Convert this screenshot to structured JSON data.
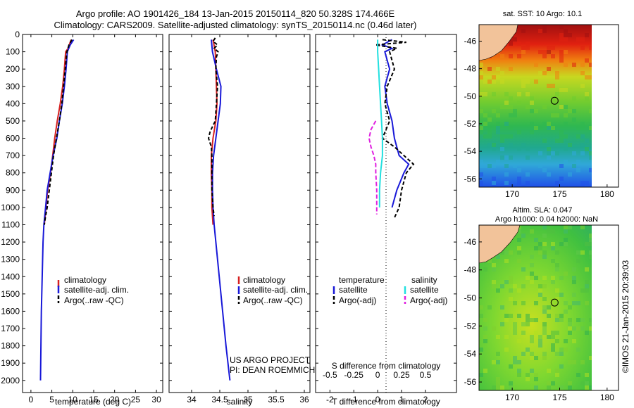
{
  "header": {
    "line1": "Argo profile: AO 1901426_184 13-Jan-2015 20150114_820 50.328S 174.466E",
    "line2": "Climatology: CARS2009. Satellite-adjusted climatology: synTS_20150114.nc (0.46d later)"
  },
  "colors": {
    "climatology": "#d62020",
    "satellite": "#1818d8",
    "argo": "#000000",
    "sat_salinity": "#22e0e0",
    "argo_salinity": "#e020e0",
    "land": "#f2c39a"
  },
  "chart_data": [
    {
      "type": "line",
      "name": "temperature-profile",
      "xlabel": "temperature (deg C)",
      "xlim": [
        -2,
        31.5
      ],
      "ylim": [
        2070,
        0
      ],
      "xticks": [
        0,
        5,
        10,
        15,
        20,
        25,
        30
      ],
      "yticks": [
        0,
        100,
        200,
        300,
        400,
        500,
        600,
        700,
        800,
        900,
        1000,
        1100,
        1200,
        1300,
        1400,
        1500,
        1600,
        1700,
        1800,
        1900,
        2000
      ],
      "legend": [
        "climatology",
        "satellite-adj. clim.",
        "Argo(..raw -QC)"
      ],
      "series": [
        {
          "name": "climatology",
          "color": "#d62020",
          "dash": "",
          "depth": [
            30,
            80,
            100,
            200,
            300,
            400,
            500,
            600,
            700,
            800,
            900,
            1000,
            1100
          ],
          "values": [
            9.6,
            8.9,
            8.3,
            8.0,
            7.6,
            7.0,
            6.3,
            5.7,
            5.2,
            4.7,
            4.0,
            3.6,
            3.2
          ]
        },
        {
          "name": "satellite-adj. clim.",
          "color": "#1818d8",
          "dash": "",
          "depth": [
            30,
            60,
            100,
            200,
            300,
            400,
            500,
            600,
            700,
            800,
            900,
            1000,
            1100,
            1200,
            1400,
            1600,
            1800,
            2000
          ],
          "values": [
            10.2,
            9.4,
            8.7,
            8.4,
            8.0,
            7.5,
            6.8,
            6.2,
            5.3,
            4.6,
            3.9,
            3.5,
            3.1,
            2.9,
            2.7,
            2.5,
            2.4,
            2.3
          ]
        },
        {
          "name": "Argo(..raw -QC)",
          "color": "#000000",
          "dash": "5,3",
          "depth": [
            30,
            60,
            100,
            200,
            300,
            400,
            500,
            600,
            700,
            800,
            900,
            1000,
            1050,
            1100
          ],
          "values": [
            9.8,
            9.1,
            8.6,
            8.2,
            7.8,
            7.4,
            6.8,
            6.1,
            5.4,
            4.9,
            4.4,
            3.9,
            3.5,
            3.2
          ]
        }
      ]
    },
    {
      "type": "line",
      "name": "salinity-profile",
      "xlabel": "salinity",
      "xlim": [
        33.6,
        36.1
      ],
      "ylim": [
        2070,
        0
      ],
      "xticks": [
        34,
        34.5,
        35,
        35.5,
        36
      ],
      "legend": [
        "climatology",
        "satellite-adj. clim.",
        "Argo(..raw -QC)"
      ],
      "annotation": [
        "US ARGO PROJECT",
        "PI: DEAN ROEMMICH"
      ],
      "series": [
        {
          "name": "climatology",
          "color": "#d62020",
          "dash": "",
          "depth": [
            30,
            100,
            200,
            300,
            400,
            500,
            600,
            700,
            800,
            900,
            1000,
            1100
          ],
          "values": [
            34.38,
            34.42,
            34.43,
            34.44,
            34.45,
            34.43,
            34.38,
            34.35,
            34.35,
            34.36,
            34.36,
            34.38
          ]
        },
        {
          "name": "satellite-adj. clim.",
          "color": "#1818d8",
          "dash": "",
          "depth": [
            30,
            100,
            200,
            300,
            400,
            500,
            600,
            700,
            800,
            900,
            1000,
            1100,
            1200,
            1400,
            1600,
            1800,
            2000
          ],
          "values": [
            34.35,
            34.37,
            34.44,
            34.52,
            34.51,
            34.47,
            34.43,
            34.39,
            34.37,
            34.37,
            34.38,
            34.4,
            34.43,
            34.49,
            34.55,
            34.61,
            34.68
          ]
        },
        {
          "name": "Argo(..raw -QC)",
          "color": "#000000",
          "dash": "5,3",
          "depth": [
            20,
            40,
            60,
            80,
            100,
            130,
            200,
            300,
            400,
            500,
            560,
            600,
            650,
            700,
            800,
            900,
            1000,
            1050
          ],
          "values": [
            34.42,
            34.38,
            34.46,
            34.4,
            34.47,
            34.44,
            34.43,
            34.46,
            34.44,
            34.42,
            34.33,
            34.3,
            34.35,
            34.36,
            34.36,
            34.36,
            34.38,
            34.4
          ]
        }
      ]
    },
    {
      "type": "line",
      "name": "difference-profile",
      "xlabel": "T difference from climatology",
      "xlabel2": "S difference from climatology",
      "xlim": [
        -2.6,
        3.3
      ],
      "ylim": [
        2070,
        0
      ],
      "xticks": [
        -2,
        -1,
        0,
        1,
        2
      ],
      "xticks2_labels": [
        "-0.5",
        "-0.25",
        "0",
        "0.25",
        "0.5"
      ],
      "legend_headers": [
        "temperature",
        "salinity"
      ],
      "legend": [
        "satellite",
        "Argo(-adj)",
        "satellite",
        "Argo(-adj)"
      ],
      "series": [
        {
          "name": "temperature satellite",
          "color": "#1818d8",
          "dash": "",
          "depth": [
            30,
            60,
            80,
            100,
            200,
            300,
            400,
            500,
            600,
            700,
            750,
            800,
            900,
            1000
          ],
          "values": [
            0.6,
            0.2,
            0.6,
            0.3,
            0.5,
            0.3,
            0.4,
            0.6,
            0.7,
            0.9,
            1.3,
            1.1,
            0.8,
            0.6
          ]
        },
        {
          "name": "temperature Argo(-adj)",
          "color": "#000000",
          "dash": "5,3",
          "depth": [
            30,
            45,
            60,
            80,
            100,
            200,
            300,
            400,
            500,
            600,
            650,
            700,
            750,
            800,
            900,
            1000,
            1060
          ],
          "values": [
            0.2,
            1.2,
            -0.1,
            0.8,
            0.5,
            0.7,
            0.4,
            0.3,
            0.5,
            0.2,
            0.7,
            1.1,
            1.5,
            1.2,
            1.0,
            0.9,
            0.7
          ]
        },
        {
          "name": "salinity satellite",
          "color": "#22e0e0",
          "dash": "",
          "depth": [
            30,
            100,
            200,
            300,
            400,
            500,
            600,
            700,
            800,
            900,
            1000
          ],
          "values": [
            0.0,
            0.0,
            0.01,
            0.02,
            0.03,
            0.04,
            0.05,
            0.05,
            0.03,
            0.02,
            0.02
          ]
        },
        {
          "name": "salinity Argo(-adj)",
          "color": "#e020e0",
          "dash": "6,3",
          "depth": [
            500,
            550,
            600,
            650,
            700,
            750,
            800,
            900,
            1000,
            1040
          ],
          "values": [
            -0.02,
            -0.07,
            -0.09,
            -0.07,
            -0.04,
            -0.02,
            -0.02,
            -0.01,
            -0.01,
            -0.01
          ]
        }
      ]
    },
    {
      "type": "heatmap",
      "name": "sst-map",
      "title": "sat. SST: 10 Argo: 10.1",
      "xticks": [
        170,
        175,
        180
      ],
      "yticks": [
        -46,
        -48,
        -50,
        -52,
        -54,
        -56
      ],
      "xlim": [
        166.5,
        181.2
      ],
      "ylim": [
        -56.6,
        -44.8
      ],
      "argo_position": [
        174.466,
        -50.328
      ]
    },
    {
      "type": "heatmap",
      "name": "sla-map",
      "title": "Altim. SLA: 0.047",
      "subtitle": "Argo h1000: 0.04 h2000: NaN",
      "xticks": [
        170,
        175,
        180
      ],
      "yticks": [
        -46,
        -48,
        -50,
        -52,
        -54,
        -56
      ],
      "xlim": [
        166.5,
        181.2
      ],
      "ylim": [
        -56.6,
        -44.8
      ],
      "argo_position": [
        174.466,
        -50.328
      ]
    }
  ],
  "footer": {
    "vertical_label": "©IMOS 21-Jan-2015 20:39:03"
  }
}
